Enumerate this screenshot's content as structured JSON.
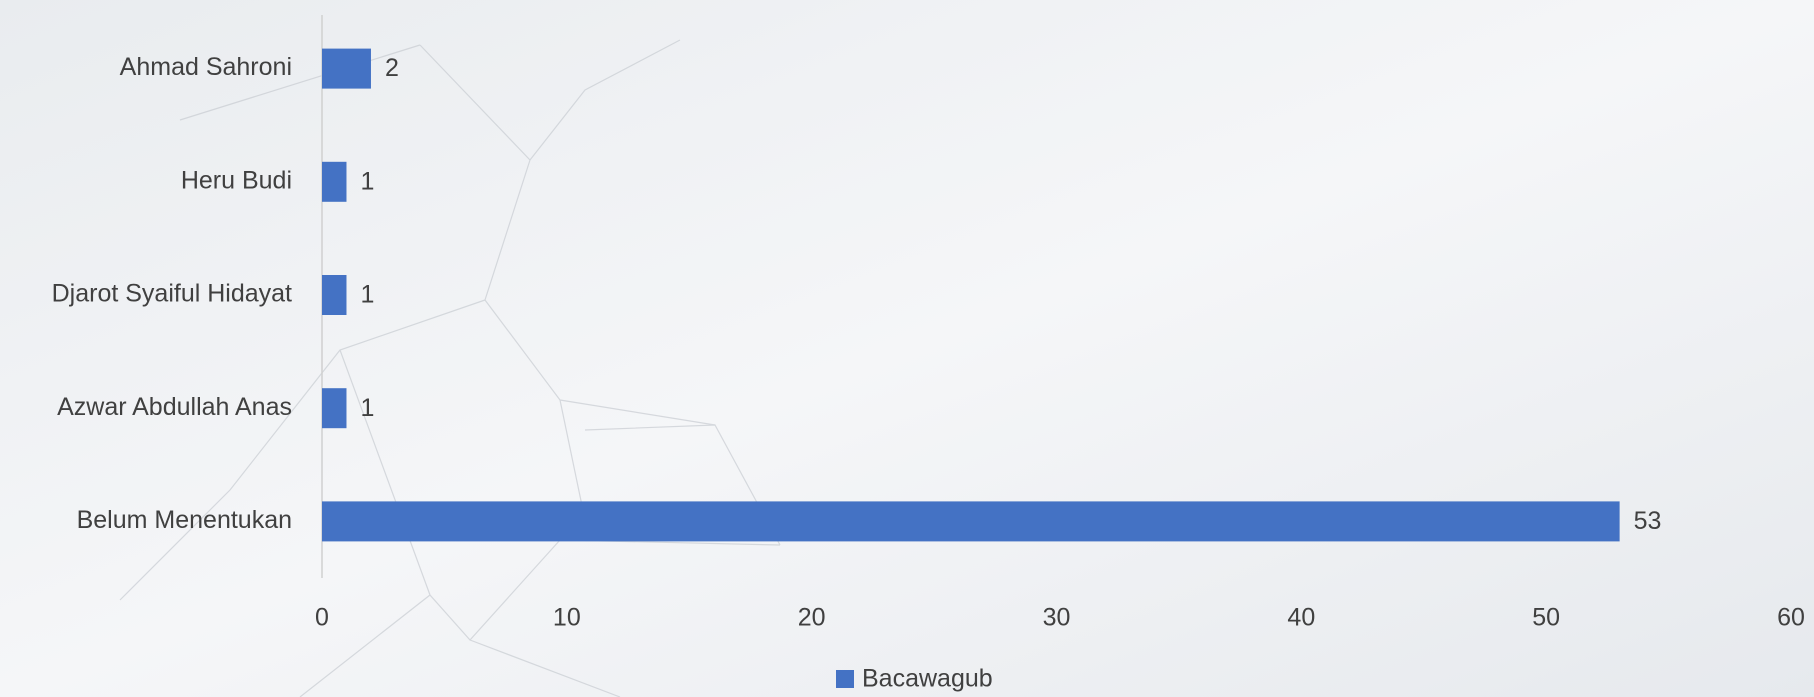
{
  "chart_data": {
    "type": "bar",
    "orientation": "horizontal",
    "categories": [
      "Ahmad Sahroni",
      "Heru Budi",
      "Djarot Syaiful Hidayat",
      "Azwar Abdullah Anas",
      "Belum Menentukan"
    ],
    "series": [
      {
        "name": "Bacawagub",
        "color": "#4472c4",
        "values": [
          2,
          1,
          1,
          1,
          53
        ]
      }
    ],
    "xlim": [
      0,
      60
    ],
    "xticks": [
      0,
      10,
      20,
      30,
      40,
      50,
      60
    ],
    "grid": false,
    "legend": "bottom"
  }
}
